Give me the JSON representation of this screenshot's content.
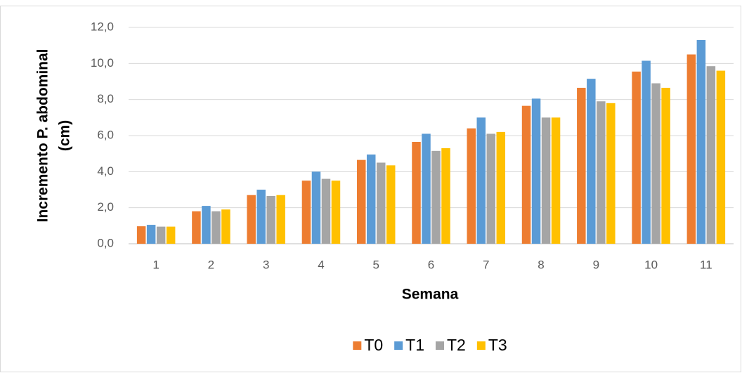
{
  "chart_data": {
    "type": "bar",
    "x_label": "Semana",
    "y_label": [
      "Incremento P. abdominal",
      "(cm)"
    ],
    "categories": [
      "1",
      "2",
      "3",
      "4",
      "5",
      "6",
      "7",
      "8",
      "9",
      "10",
      "11"
    ],
    "series": [
      {
        "name": "T0",
        "color": "#ED7D31",
        "values": [
          0.97,
          1.8,
          2.7,
          3.5,
          4.65,
          5.65,
          6.4,
          7.65,
          8.65,
          9.55,
          10.5
        ]
      },
      {
        "name": "T1",
        "color": "#5B9BD5",
        "values": [
          1.05,
          2.1,
          3.0,
          4.0,
          4.95,
          6.1,
          7.0,
          8.05,
          9.15,
          10.15,
          11.3
        ]
      },
      {
        "name": "T2",
        "color": "#A5A5A5",
        "values": [
          0.95,
          1.8,
          2.65,
          3.6,
          4.5,
          5.15,
          6.1,
          7.0,
          7.9,
          8.9,
          9.85
        ]
      },
      {
        "name": "T3",
        "color": "#FFC000",
        "values": [
          0.95,
          1.9,
          2.7,
          3.5,
          4.35,
          5.3,
          6.2,
          7.0,
          7.8,
          8.65,
          9.6
        ]
      }
    ],
    "ylim": [
      0,
      12
    ],
    "yticks": [
      {
        "value": 0,
        "label": "0,0"
      },
      {
        "value": 2,
        "label": "2,0"
      },
      {
        "value": 4,
        "label": "4,0"
      },
      {
        "value": 6,
        "label": "6,0"
      },
      {
        "value": 8,
        "label": "8,0"
      },
      {
        "value": 10,
        "label": "10,0"
      },
      {
        "value": 12,
        "label": "12,0"
      }
    ],
    "grid": true,
    "legend": "bottom"
  }
}
